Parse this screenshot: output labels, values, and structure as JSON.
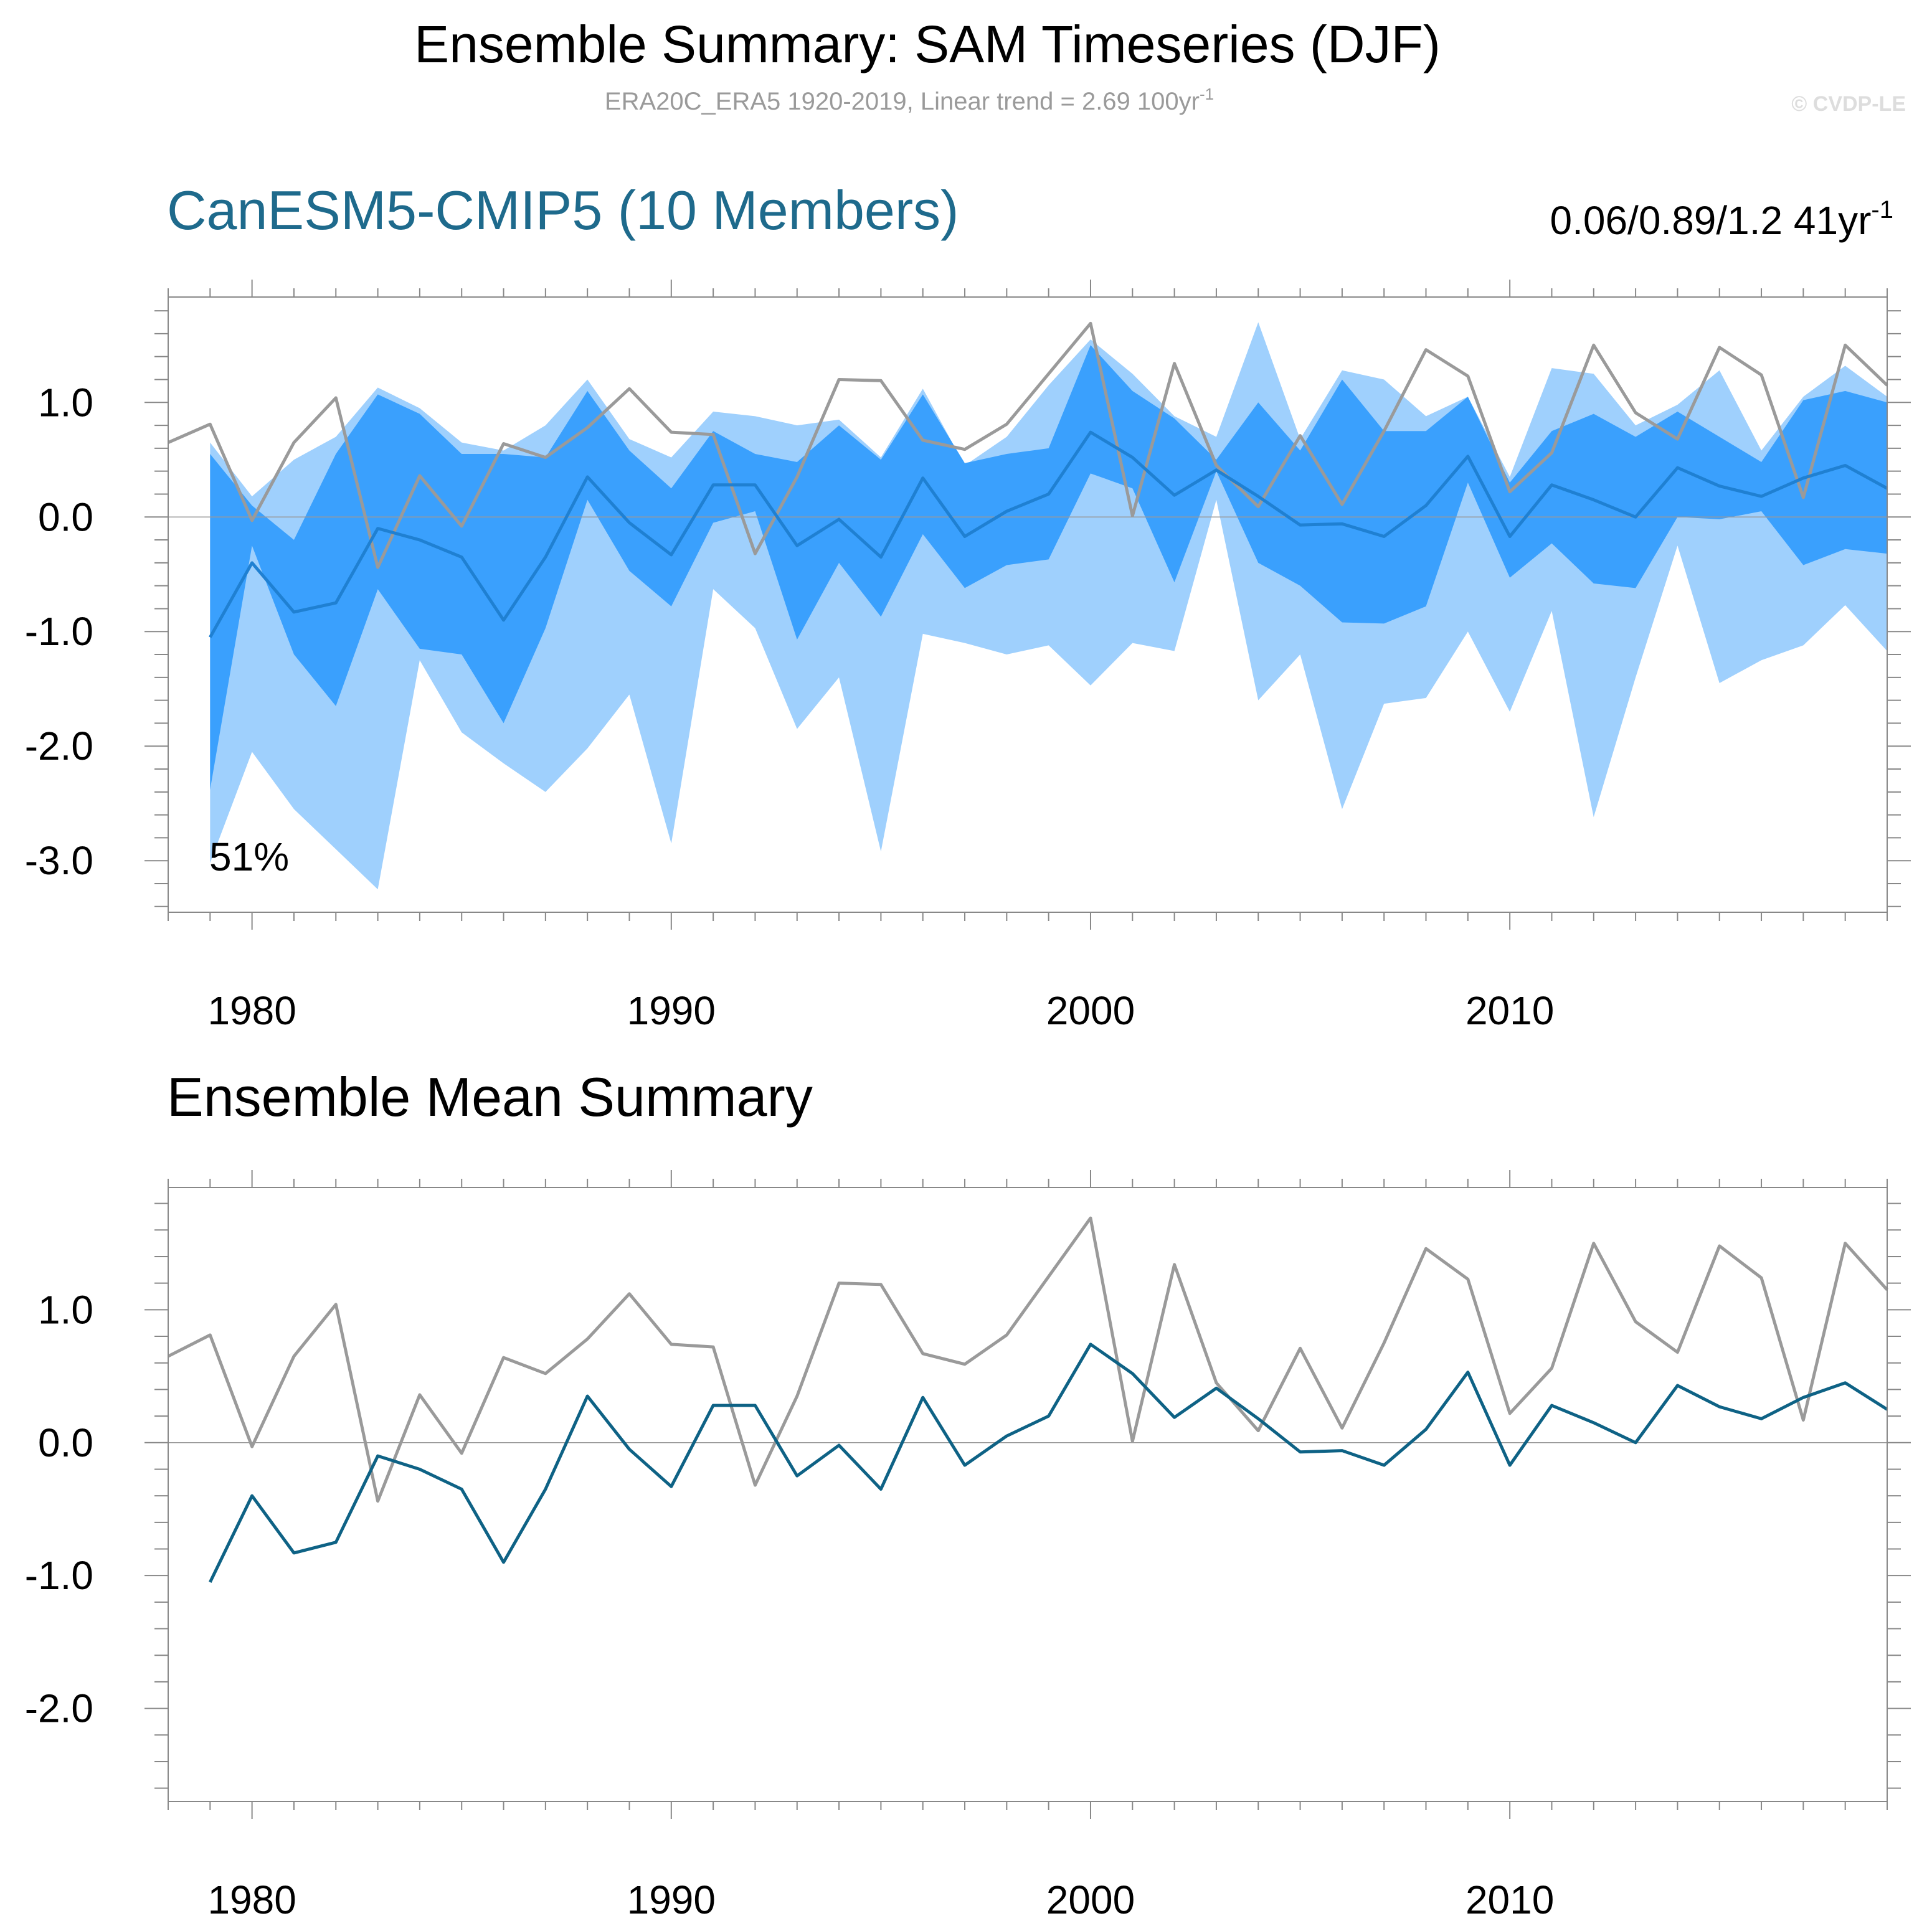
{
  "title": "Ensemble Summary: SAM Timeseries (DJF)",
  "subtitle": {
    "prefix": "ERA20C_ERA5 1920-2019, Linear trend = 2.69 100yr",
    "sup": "-1"
  },
  "credit": "© CVDP-LE",
  "colors": {
    "outer_band": "#9fd0fd",
    "inner_band": "#3aa0fd",
    "ensemble_mean_top": "#1f80d2",
    "ensemble_mean_bottom": "#0e6285",
    "observations": "#9a9a9a",
    "panel1_title": "#1e6a8c"
  },
  "chart_data": [
    {
      "type": "area",
      "name": "ensemble-spread",
      "title": "CanESM5-CMIP5 (10 Members)",
      "stats_text": {
        "value": "0.06/0.89/1.2 41yr",
        "sup": "-1"
      },
      "annotation": "51%",
      "xlim": [
        1978,
        2019
      ],
      "ylim": [
        -3.45,
        1.92
      ],
      "yticks": [
        1.0,
        0.0,
        -1.0,
        -2.0,
        -3.0
      ],
      "ytick_labels": [
        "1.0",
        "0.0",
        "-1.0",
        "-2.0",
        "-3.0"
      ],
      "xticks": [
        1980,
        1990,
        2000,
        2010
      ],
      "xtick_labels": [
        "1980",
        "1990",
        "2000",
        "2010"
      ],
      "x": [
        1979,
        1980,
        1981,
        1982,
        1983,
        1984,
        1985,
        1986,
        1987,
        1988,
        1989,
        1990,
        1991,
        1992,
        1993,
        1994,
        1995,
        1996,
        1997,
        1998,
        1999,
        2000,
        2001,
        2002,
        2003,
        2004,
        2005,
        2006,
        2007,
        2008,
        2009,
        2010,
        2011,
        2012,
        2013,
        2014,
        2015,
        2016,
        2017,
        2018,
        2019
      ],
      "series": [
        {
          "name": "outer-max",
          "values": [
            0.65,
            0.18,
            0.5,
            0.7,
            1.13,
            0.95,
            0.65,
            0.58,
            0.8,
            1.2,
            0.68,
            0.52,
            0.92,
            0.88,
            0.8,
            0.85,
            0.52,
            1.12,
            0.45,
            0.7,
            1.15,
            1.55,
            1.25,
            0.88,
            0.7,
            1.7,
            0.68,
            1.28,
            1.2,
            0.88,
            1.05,
            0.35,
            1.3,
            1.25,
            0.8,
            0.98,
            1.28,
            0.58,
            1.05,
            1.32,
            1.05
          ]
        },
        {
          "name": "inner-max",
          "values": [
            0.55,
            0.1,
            -0.2,
            0.55,
            1.07,
            0.9,
            0.55,
            0.55,
            0.52,
            1.1,
            0.58,
            0.25,
            0.75,
            0.55,
            0.48,
            0.8,
            0.5,
            1.07,
            0.47,
            0.55,
            0.6,
            1.5,
            1.1,
            0.86,
            0.5,
            1.0,
            0.58,
            1.2,
            0.75,
            0.75,
            1.05,
            0.3,
            0.75,
            0.9,
            0.7,
            0.92,
            0.7,
            0.48,
            1.02,
            1.1,
            1.0
          ]
        },
        {
          "name": "inner-min",
          "values": [
            -2.38,
            -0.25,
            -1.2,
            -1.65,
            -0.63,
            -1.15,
            -1.2,
            -1.8,
            -0.97,
            0.15,
            -0.47,
            -0.78,
            -0.05,
            0.05,
            -1.07,
            -0.4,
            -0.87,
            -0.15,
            -0.62,
            -0.42,
            -0.37,
            0.38,
            0.25,
            -0.57,
            0.4,
            -0.4,
            -0.6,
            -0.92,
            -0.93,
            -0.78,
            0.3,
            -0.53,
            -0.23,
            -0.58,
            -0.62,
            0.0,
            -0.02,
            0.05,
            -0.42,
            -0.28,
            -0.32
          ]
        },
        {
          "name": "outer-min",
          "values": [
            -3.02,
            -2.05,
            -2.55,
            -2.9,
            -3.25,
            -1.25,
            -1.88,
            -2.15,
            -2.4,
            -2.02,
            -1.55,
            -2.85,
            -0.63,
            -0.97,
            -1.85,
            -1.4,
            -2.92,
            -1.02,
            -1.1,
            -1.2,
            -1.12,
            -1.47,
            -1.1,
            -1.17,
            0.15,
            -1.6,
            -1.2,
            -2.55,
            -1.63,
            -1.58,
            -1.0,
            -1.7,
            -0.82,
            -2.62,
            -1.4,
            -0.25,
            -1.45,
            -1.25,
            -1.12,
            -0.77,
            -1.17
          ]
        },
        {
          "name": "ensemble-mean",
          "values": [
            -1.05,
            -0.4,
            -0.83,
            -0.75,
            -0.1,
            -0.2,
            -0.35,
            -0.9,
            -0.35,
            0.35,
            -0.05,
            -0.33,
            0.28,
            0.28,
            -0.25,
            -0.02,
            -0.35,
            0.34,
            -0.17,
            0.05,
            0.2,
            0.74,
            0.52,
            0.19,
            0.41,
            0.18,
            -0.07,
            -0.06,
            -0.17,
            0.1,
            0.53,
            -0.17,
            0.28,
            0.15,
            0.0,
            0.43,
            0.27,
            0.18,
            0.34,
            0.45,
            0.25
          ]
        },
        {
          "name": "observations",
          "x": [
            1978,
            1979,
            1980,
            1981,
            1982,
            1983,
            1984,
            1985,
            1986,
            1987,
            1988,
            1989,
            1990,
            1991,
            1992,
            1993,
            1994,
            1995,
            1996,
            1997,
            1998,
            1999,
            2000,
            2001,
            2002,
            2003,
            2004,
            2005,
            2006,
            2007,
            2008,
            2009,
            2010,
            2011,
            2012,
            2013,
            2014,
            2015,
            2016,
            2017,
            2018,
            2019
          ],
          "values": [
            0.65,
            0.81,
            -0.03,
            0.65,
            1.04,
            -0.44,
            0.36,
            -0.08,
            0.64,
            0.52,
            0.78,
            1.12,
            0.74,
            0.72,
            -0.32,
            0.35,
            1.2,
            1.19,
            0.67,
            0.59,
            0.81,
            1.25,
            1.69,
            0.01,
            1.34,
            0.45,
            0.09,
            0.71,
            0.11,
            0.75,
            1.46,
            1.23,
            0.22,
            0.56,
            1.5,
            0.91,
            0.68,
            1.48,
            1.24,
            0.17,
            1.5,
            1.15
          ]
        }
      ]
    },
    {
      "type": "line",
      "name": "ensemble-mean-summary",
      "title": "Ensemble Mean Summary",
      "xlim": [
        1978,
        2019
      ],
      "ylim": [
        -2.7,
        1.92
      ],
      "yticks": [
        1.0,
        0.0,
        -1.0,
        -2.0
      ],
      "ytick_labels": [
        "1.0",
        "0.0",
        "-1.0",
        "-2.0"
      ],
      "xticks": [
        1980,
        1990,
        2000,
        2010
      ],
      "xtick_labels": [
        "1980",
        "1990",
        "2000",
        "2010"
      ],
      "series": [
        {
          "name": "observations",
          "x": [
            1978,
            1979,
            1980,
            1981,
            1982,
            1983,
            1984,
            1985,
            1986,
            1987,
            1988,
            1989,
            1990,
            1991,
            1992,
            1993,
            1994,
            1995,
            1996,
            1997,
            1998,
            1999,
            2000,
            2001,
            2002,
            2003,
            2004,
            2005,
            2006,
            2007,
            2008,
            2009,
            2010,
            2011,
            2012,
            2013,
            2014,
            2015,
            2016,
            2017,
            2018,
            2019
          ],
          "values": [
            0.65,
            0.81,
            -0.03,
            0.65,
            1.04,
            -0.44,
            0.36,
            -0.08,
            0.64,
            0.52,
            0.78,
            1.12,
            0.74,
            0.72,
            -0.32,
            0.35,
            1.2,
            1.19,
            0.67,
            0.59,
            0.81,
            1.25,
            1.69,
            0.01,
            1.34,
            0.45,
            0.09,
            0.71,
            0.11,
            0.75,
            1.46,
            1.23,
            0.22,
            0.56,
            1.5,
            0.91,
            0.68,
            1.48,
            1.24,
            0.17,
            1.5,
            1.15
          ]
        },
        {
          "name": "ensemble-mean",
          "x": [
            1979,
            1980,
            1981,
            1982,
            1983,
            1984,
            1985,
            1986,
            1987,
            1988,
            1989,
            1990,
            1991,
            1992,
            1993,
            1994,
            1995,
            1996,
            1997,
            1998,
            1999,
            2000,
            2001,
            2002,
            2003,
            2004,
            2005,
            2006,
            2007,
            2008,
            2009,
            2010,
            2011,
            2012,
            2013,
            2014,
            2015,
            2016,
            2017,
            2018,
            2019
          ],
          "values": [
            -1.05,
            -0.4,
            -0.83,
            -0.75,
            -0.1,
            -0.2,
            -0.35,
            -0.9,
            -0.35,
            0.35,
            -0.05,
            -0.33,
            0.28,
            0.28,
            -0.25,
            -0.02,
            -0.35,
            0.34,
            -0.17,
            0.05,
            0.2,
            0.74,
            0.52,
            0.19,
            0.41,
            0.18,
            -0.07,
            -0.06,
            -0.17,
            0.1,
            0.53,
            -0.17,
            0.28,
            0.15,
            0.0,
            0.43,
            0.27,
            0.18,
            0.34,
            0.45,
            0.25
          ]
        }
      ]
    }
  ]
}
